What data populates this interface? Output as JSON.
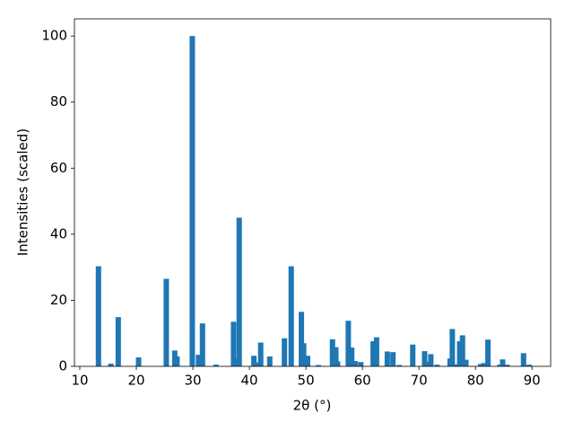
{
  "chart_data": {
    "type": "bar",
    "x_label": "2θ (°)",
    "y_label": "Intensities (scaled)",
    "color": "#1f77b4",
    "x": [
      13.3,
      15.5,
      16.8,
      20.4,
      25.3,
      26.8,
      27.2,
      29.9,
      31.0,
      31.7,
      34.1,
      37.2,
      37.5,
      38.2,
      40.8,
      41.5,
      42.0,
      43.6,
      46.2,
      47.4,
      49.2,
      49.6,
      50.3,
      52.2,
      54.7,
      55.3,
      55.6,
      57.5,
      58.1,
      58.7,
      59.7,
      61.9,
      62.5,
      64.4,
      65.4,
      66.5,
      68.9,
      71.0,
      71.6,
      72.1,
      73.2,
      75.5,
      75.9,
      76.3,
      77.2,
      77.7,
      78.3,
      80.9,
      81.5,
      82.2,
      84.3,
      84.8,
      85.6,
      88.5,
      89.5
    ],
    "values": [
      30.3,
      0.8,
      14.9,
      2.7,
      26.5,
      4.8,
      3.0,
      100,
      3.5,
      13.0,
      0.5,
      13.5,
      2.4,
      45.0,
      3.2,
      1.2,
      7.2,
      3.0,
      8.5,
      30.3,
      16.5,
      7.0,
      3.2,
      0.4,
      8.2,
      5.8,
      1.5,
      13.8,
      5.7,
      1.6,
      1.3,
      7.6,
      8.8,
      4.5,
      4.3,
      0.4,
      6.6,
      4.6,
      1.4,
      3.7,
      0.5,
      2.4,
      11.3,
      0.6,
      7.6,
      9.4,
      2.0,
      0.7,
      1.0,
      8.1,
      0.5,
      2.1,
      0.5,
      4.0,
      0.5
    ],
    "xlim": [
      9.05,
      93.3
    ],
    "ylim": [
      0,
      105.2
    ],
    "xticks": [
      10,
      20,
      30,
      40,
      50,
      60,
      70,
      80,
      90
    ],
    "yticks": [
      0,
      20,
      40,
      60,
      80,
      100
    ]
  }
}
